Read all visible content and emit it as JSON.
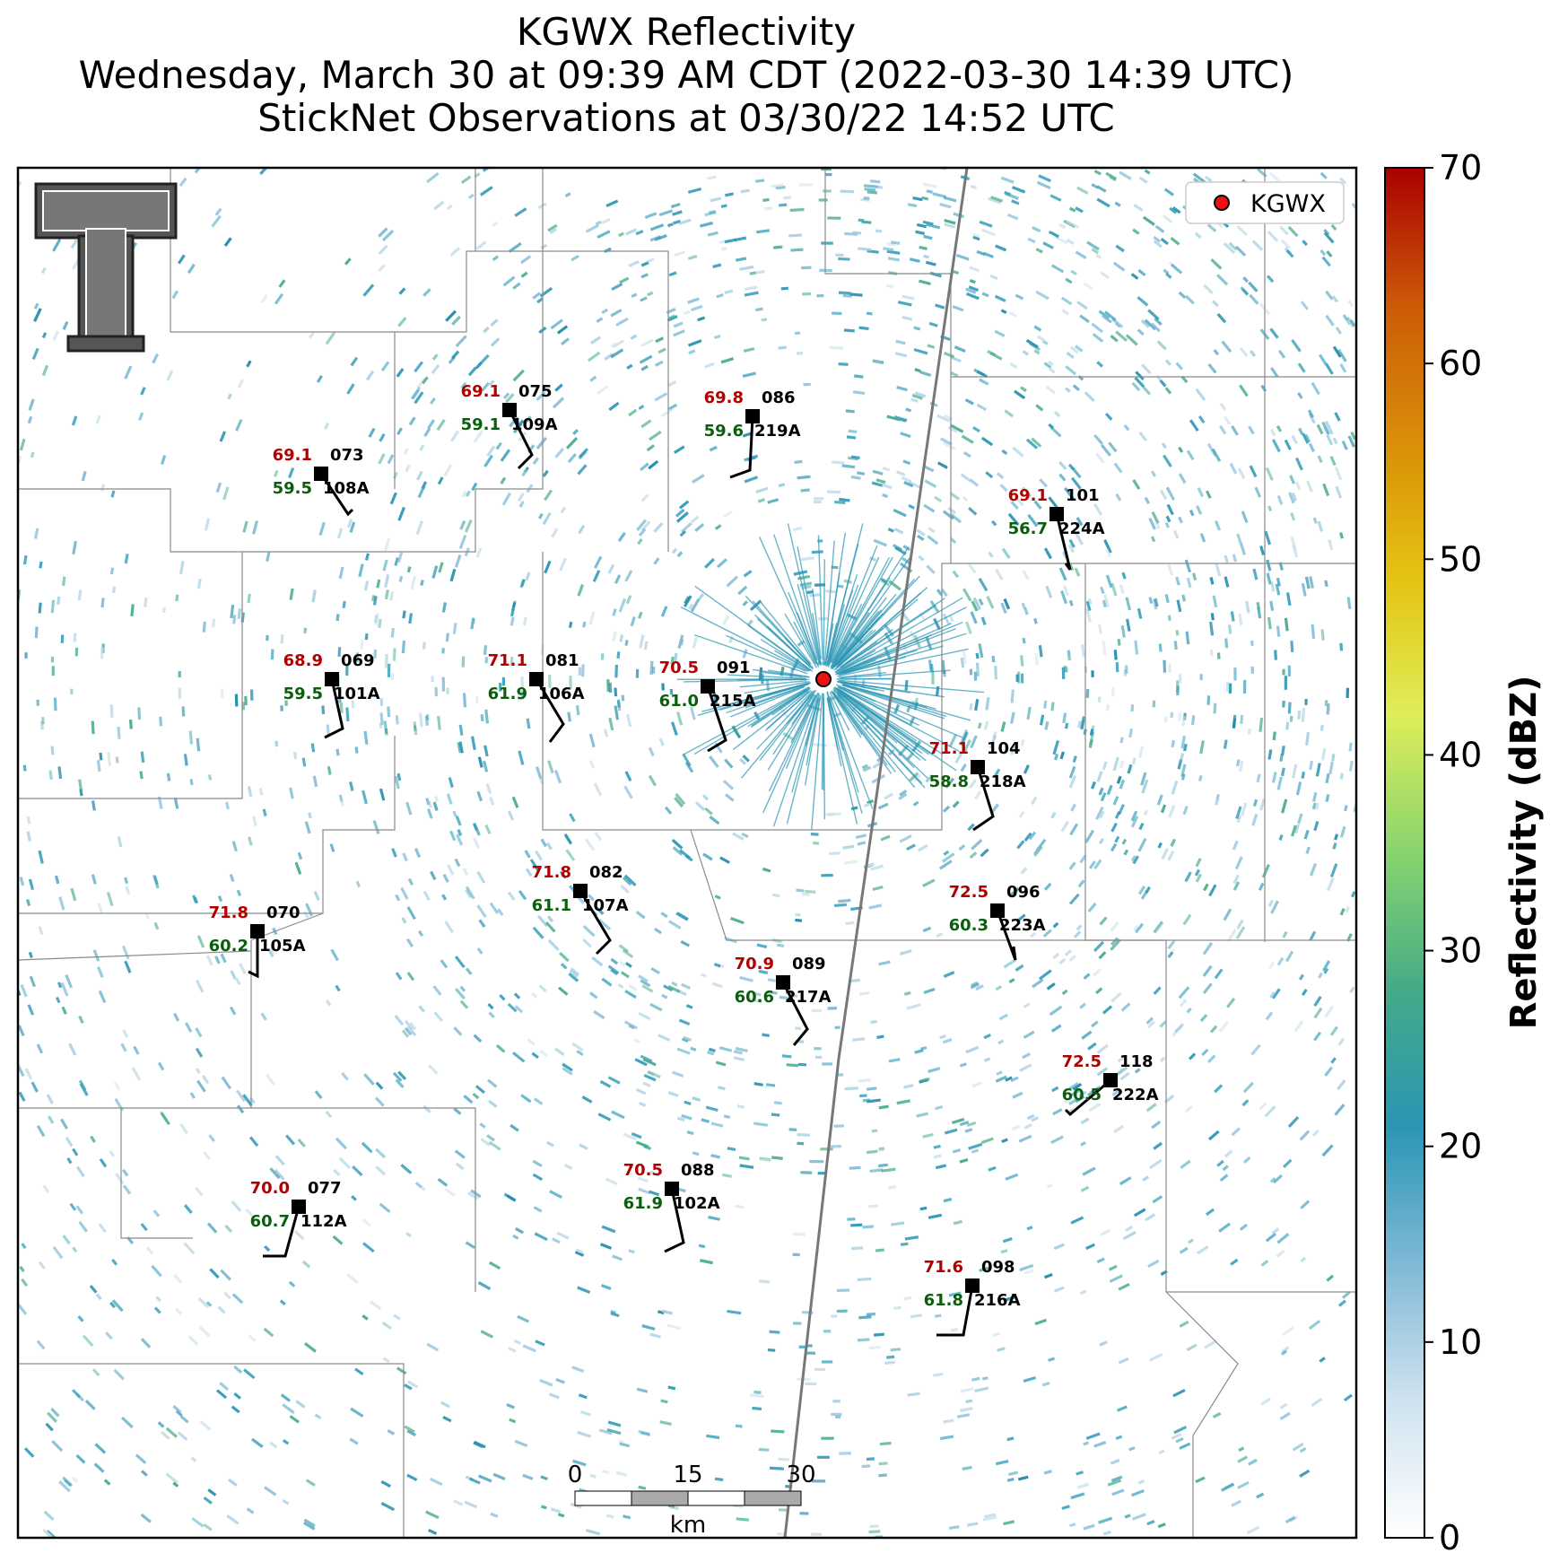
{
  "title": {
    "line1": "KGWX Reflectivity",
    "line2": "Wednesday, March 30 at 09:39 AM CDT (2022-03-30 14:39 UTC)",
    "line3": "StickNet Observations at 03/30/22 14:52 UTC"
  },
  "legend": {
    "label": "KGWX",
    "marker_color": "#ee1111"
  },
  "radar": {
    "name": "KGWX"
  },
  "colorbar": {
    "label": "Reflectivity (dBZ)",
    "ticks": [
      "0",
      "10",
      "20",
      "30",
      "40",
      "50",
      "60",
      "70"
    ],
    "colors": [
      "#ffffff",
      "#cfe3ef",
      "#7fb9d6",
      "#2a96b4",
      "#44aa88",
      "#88d46e",
      "#dfee5a",
      "#e4c412",
      "#d98e08",
      "#cc5a08",
      "#aa0000"
    ]
  },
  "scale_bar": {
    "ticks": [
      "0",
      "15",
      "30"
    ],
    "unit": "km"
  },
  "stations": [
    {
      "id": "069",
      "name": "101A",
      "temp": "68.9",
      "dew": "59.5"
    },
    {
      "id": "070",
      "name": "105A",
      "temp": "71.8",
      "dew": "60.2"
    },
    {
      "id": "073",
      "name": "108A",
      "temp": "69.1",
      "dew": "59.5"
    },
    {
      "id": "075",
      "name": "109A",
      "temp": "69.1",
      "dew": "59.1"
    },
    {
      "id": "077",
      "name": "112A",
      "temp": "70.0",
      "dew": "60.7"
    },
    {
      "id": "081",
      "name": "106A",
      "temp": "71.1",
      "dew": "61.9"
    },
    {
      "id": "082",
      "name": "107A",
      "temp": "71.8",
      "dew": "61.1"
    },
    {
      "id": "086",
      "name": "219A",
      "temp": "69.8",
      "dew": "59.6"
    },
    {
      "id": "088",
      "name": "102A",
      "temp": "70.5",
      "dew": "61.9"
    },
    {
      "id": "089",
      "name": "217A",
      "temp": "70.9",
      "dew": "60.6"
    },
    {
      "id": "091",
      "name": "215A",
      "temp": "70.5",
      "dew": "61.0"
    },
    {
      "id": "096",
      "name": "223A",
      "temp": "72.5",
      "dew": "60.3"
    },
    {
      "id": "098",
      "name": "216A",
      "temp": "71.6",
      "dew": "61.8"
    },
    {
      "id": "101",
      "name": "224A",
      "temp": "69.1",
      "dew": "56.7"
    },
    {
      "id": "104",
      "name": "218A",
      "temp": "71.1",
      "dew": "58.8"
    },
    {
      "id": "118",
      "name": "222A",
      "temp": "72.5",
      "dew": "60.5"
    }
  ]
}
